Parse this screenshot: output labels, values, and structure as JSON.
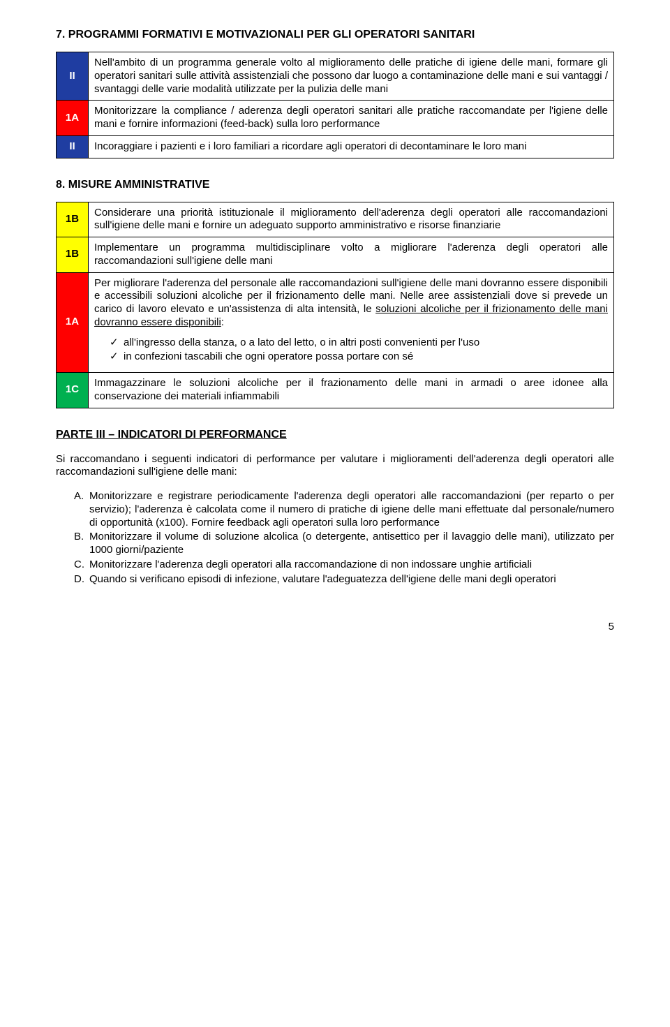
{
  "colors": {
    "blue": "#1f3da1",
    "yellow": "#ffff00",
    "red": "#ff0000",
    "green": "#00b050",
    "code_text_light": "#ffffff",
    "code_text_dark": "#000000"
  },
  "section7": {
    "title": "7. PROGRAMMI FORMATIVI E MOTIVAZIONALI PER GLI OPERATORI SANITARI",
    "rows": [
      {
        "code": "II",
        "bg": "#1f3da1",
        "fg": "#ffffff",
        "text": "Nell'ambito di un programma generale volto al miglioramento delle pratiche di igiene delle mani, formare gli operatori sanitari sulle attività assistenziali che possono dar luogo a contaminazione delle mani e sui vantaggi / svantaggi delle varie modalità utilizzate per la pulizia delle mani"
      },
      {
        "code": "1A",
        "bg": "#ff0000",
        "fg": "#ffffff",
        "text": "Monitorizzare la compliance / aderenza degli operatori sanitari alle pratiche raccomandate per l'igiene delle mani e fornire informazioni (feed-back) sulla loro performance"
      },
      {
        "code": "II",
        "bg": "#1f3da1",
        "fg": "#ffffff",
        "text": "Incoraggiare i pazienti e i loro familiari a ricordare agli operatori di decontaminare le loro mani"
      }
    ]
  },
  "section8": {
    "title": "8. MISURE AMMINISTRATIVE",
    "rows": [
      {
        "code": "1B",
        "bg": "#ffff00",
        "fg": "#000000",
        "text": "Considerare una priorità istituzionale il miglioramento dell'aderenza degli operatori alle raccomandazioni sull'igiene delle mani e fornire un adeguato supporto amministrativo e risorse finanziarie"
      },
      {
        "code": "1B",
        "bg": "#ffff00",
        "fg": "#000000",
        "text": "Implementare un programma multidisciplinare volto a migliorare l'aderenza degli operatori alle raccomandazioni sull'igiene delle mani"
      },
      {
        "code": "1A",
        "bg": "#ff0000",
        "fg": "#ffffff",
        "pre": "Per migliorare l'aderenza del personale alle raccomandazioni sull'igiene delle mani dovranno essere disponibili e accessibili soluzioni alcoliche per il frizionamento delle mani. Nelle aree assistenziali dove si prevede un carico di lavoro elevato e un'assistenza di alta intensità, le ",
        "underlined": "soluzioni alcoliche per il frizionamento delle mani dovranno essere disponibili",
        "post": ":",
        "bullets": [
          "all'ingresso della stanza, o a lato del letto, o in altri posti convenienti per l'uso",
          "in confezioni tascabili che ogni operatore possa portare con sé"
        ]
      },
      {
        "code": "1C",
        "bg": "#00b050",
        "fg": "#ffffff",
        "text": "Immagazzinare le soluzioni alcoliche per il frazionamento delle mani in armadi o aree idonee alla conservazione dei materiali infiammabili"
      }
    ]
  },
  "part3": {
    "title": "PARTE III – INDICATORI DI PERFORMANCE",
    "intro": "Si raccomandano i seguenti indicatori di performance per valutare i miglioramenti dell'aderenza degli operatori alle raccomandazioni sull'igiene delle mani:",
    "items": [
      {
        "letter": "A.",
        "text": "Monitorizzare e registrare periodicamente l'aderenza degli operatori alle raccomandazioni (per reparto o per servizio); l'aderenza è calcolata come il numero di pratiche di igiene delle mani effettuate dal personale/numero di opportunità (x100). Fornire feedback agli operatori sulla loro performance"
      },
      {
        "letter": "B.",
        "text": "Monitorizzare il volume di soluzione alcolica (o detergente, antisettico per il lavaggio delle mani), utilizzato per 1000 giorni/paziente"
      },
      {
        "letter": "C.",
        "text": "Monitorizzare l'aderenza degli operatori alla raccomandazione di non indossare unghie artificiali"
      },
      {
        "letter": "D.",
        "text": "Quando si verificano episodi di infezione, valutare l'adeguatezza dell'igiene delle mani degli operatori"
      }
    ]
  },
  "page_number": "5"
}
